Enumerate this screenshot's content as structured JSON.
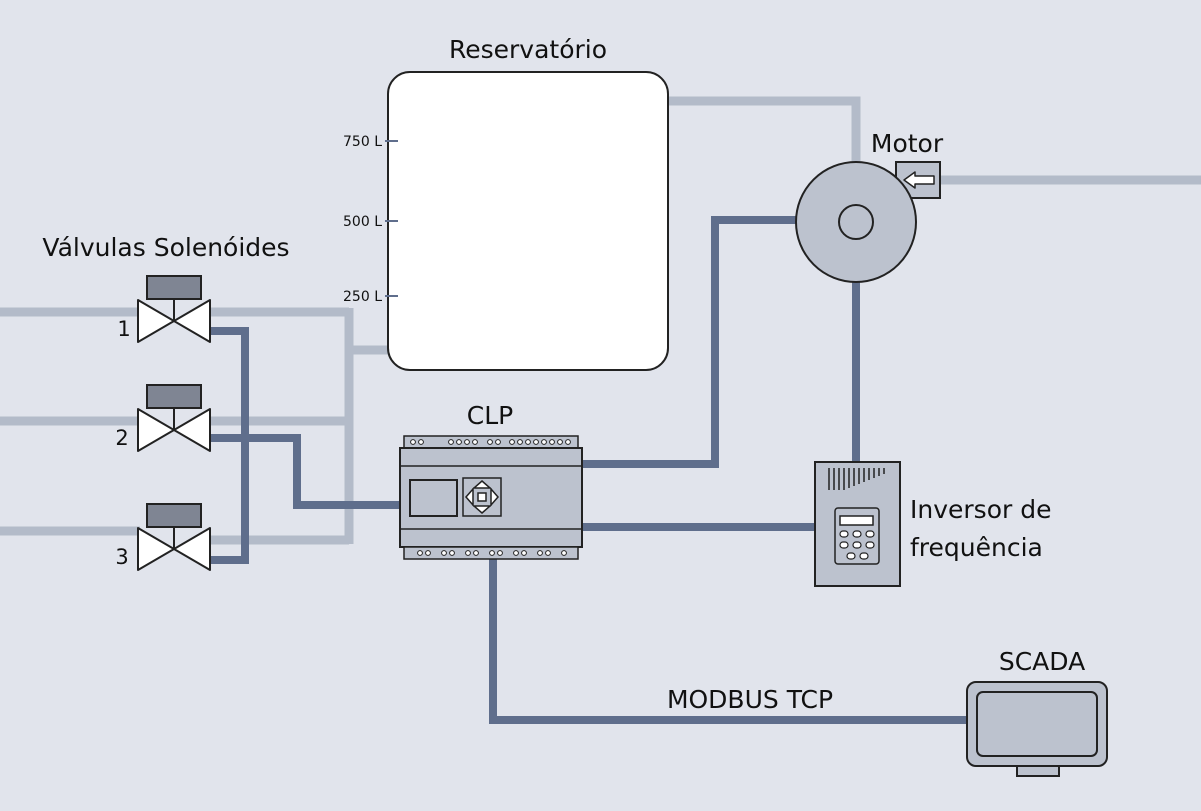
{
  "labels": {
    "reservoir": "Reservatório",
    "motor": "Motor",
    "valves": "Válvulas Solenóides",
    "plc": "CLP",
    "inverter_line1": "Inversor de",
    "inverter_line2": "frequência",
    "scada": "SCADA",
    "network": "MODBUS TCP"
  },
  "reservoir_levels": [
    "750 L",
    "500 L",
    "250 L"
  ],
  "valve_numbers": [
    "1",
    "2",
    "3"
  ],
  "colors": {
    "background": "#e1e4ec",
    "water_pipe": "#b3bbc9",
    "signal_cable": "#5f6e8c",
    "device_fill": "#bcc2ce",
    "tank_fill": "#ffffff"
  }
}
